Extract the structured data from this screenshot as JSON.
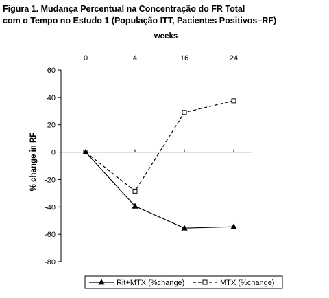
{
  "figure": {
    "title_line1": "Figura 1. Mudança Percentual na Concentração do FR Total",
    "title_line2": "com o Tempo no Estudo 1 (População ITT, Pacientes Positivos–RF)"
  },
  "chart_data": {
    "type": "line",
    "title": "Figura 1. Mudança Percentual na Concentração do FR Total com o Tempo no Estudo 1 (População ITT, Pacientes Positivos–RF)",
    "xlabel": "weeks",
    "xlabel_position": "top",
    "ylabel": "% change in RF",
    "categories": [
      "0",
      "4",
      "16",
      "24"
    ],
    "ylim": [
      -80,
      60
    ],
    "yticks": [
      -80,
      -60,
      -40,
      -20,
      0,
      20,
      40,
      60
    ],
    "grid": false,
    "legend_position": "bottom",
    "series": [
      {
        "name": "Rit+MTX (%change)",
        "values": [
          0,
          -39.5,
          -55.5,
          -54.5
        ],
        "line_style": "solid",
        "marker": "filled-triangle",
        "color": "#000000"
      },
      {
        "name": "MTX (%change)",
        "values": [
          0,
          -28.5,
          29,
          37.5
        ],
        "line_style": "dashed",
        "marker": "open-square",
        "color": "#000000"
      }
    ]
  }
}
